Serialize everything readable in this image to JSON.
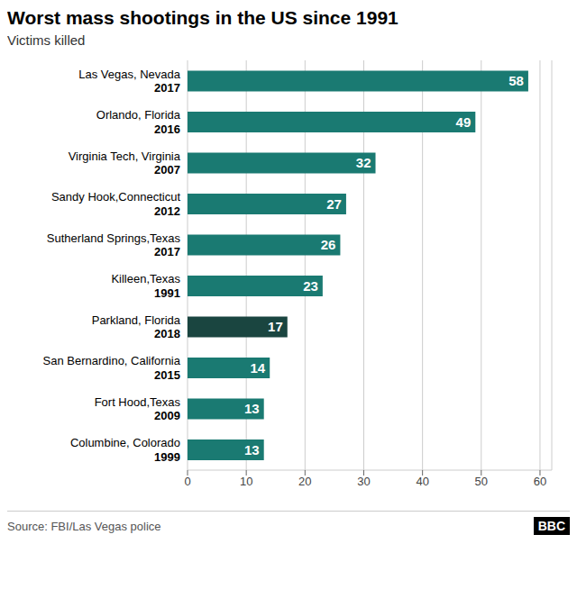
{
  "chart_data": {
    "type": "bar",
    "orientation": "horizontal",
    "title": "Worst mass shootings in the US since 1991",
    "subtitle": "Victims killed",
    "categories": [
      [
        "Las Vegas, Nevada",
        "2017"
      ],
      [
        "Orlando, Florida",
        "2016"
      ],
      [
        "Virginia Tech, Virginia",
        "2007"
      ],
      [
        "Sandy Hook,Connecticut",
        "2012"
      ],
      [
        "Sutherland Springs,Texas",
        "2017"
      ],
      [
        "Killeen,Texas",
        "1991"
      ],
      [
        "Parkland, Florida",
        "2018"
      ],
      [
        "San Bernardino, California",
        "2015"
      ],
      [
        "Fort Hood,Texas",
        "2009"
      ],
      [
        "Columbine, Colorado",
        "1999"
      ]
    ],
    "values": [
      58,
      49,
      32,
      27,
      26,
      23,
      17,
      14,
      13,
      13
    ],
    "colors": [
      "#1a7a72",
      "#1a7a72",
      "#1a7a72",
      "#1a7a72",
      "#1a7a72",
      "#1a7a72",
      "#1a4540",
      "#1a7a72",
      "#1a7a72",
      "#1a7a72"
    ],
    "xlim": [
      0,
      62
    ],
    "xticks": [
      0,
      10,
      20,
      30,
      40,
      50,
      60
    ],
    "grid": true,
    "data_labels": true,
    "annotations": [
      "Source: FBI/Las Vegas police",
      "BBC"
    ]
  }
}
